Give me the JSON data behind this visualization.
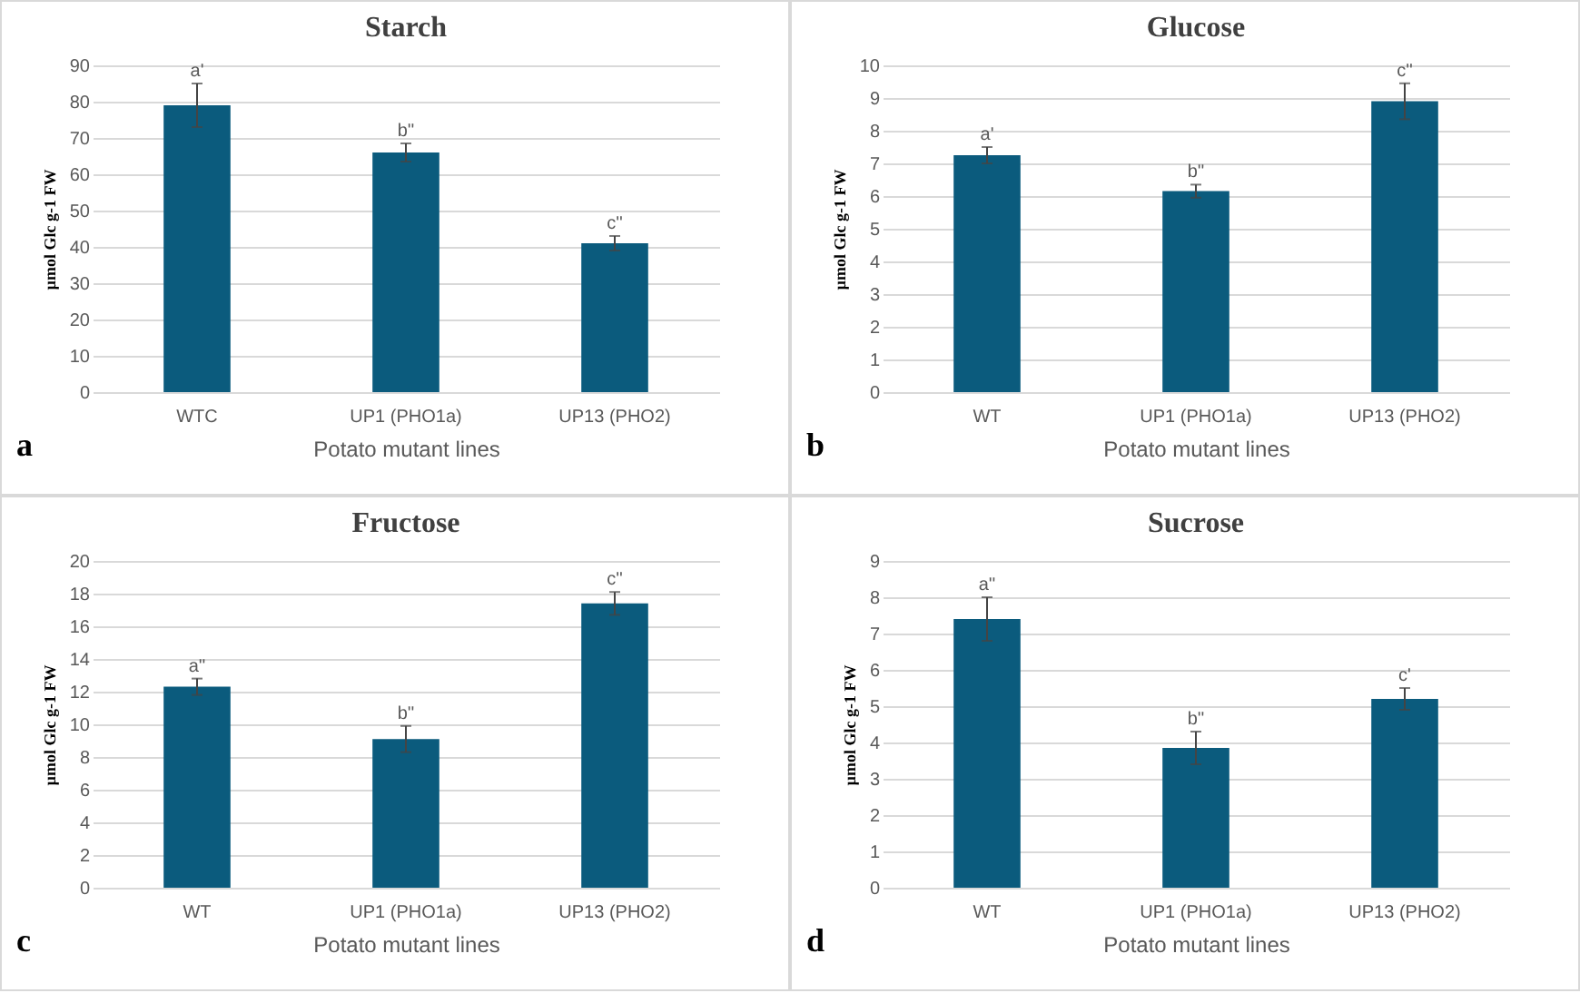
{
  "chart_data": [
    {
      "type": "bar",
      "title": "Starch",
      "xlabel": "Potato mutant lines",
      "ylabel": "µmol Glc g-1 FW",
      "categories": [
        "WTC",
        "UP1 (PHO1a)",
        "UP13 (PHO2)"
      ],
      "values": [
        79,
        66,
        41
      ],
      "errors": [
        6,
        2.5,
        2
      ],
      "color": "#0b5b7d",
      "ylim": [
        0,
        90
      ],
      "yticks": [
        0,
        10,
        20,
        30,
        40,
        50,
        60,
        70,
        80,
        90
      ],
      "grid": "y",
      "annotations": [
        {
          "text": "a'",
          "x": "WTC",
          "y": 85
        },
        {
          "text": "b''",
          "x": "UP1 (PHO1a)",
          "y": 68.5
        },
        {
          "text": "c''",
          "x": "UP13 (PHO2)",
          "y": 43
        },
        "a"
      ]
    },
    {
      "type": "bar",
      "title": "Glucose",
      "xlabel": "Potato mutant lines",
      "ylabel": "µmol Glc g-1 FW",
      "categories": [
        "WT",
        "UP1 (PHO1a)",
        "UP13 (PHO2)"
      ],
      "values": [
        7.25,
        6.15,
        8.9
      ],
      "errors": [
        0.25,
        0.2,
        0.55
      ],
      "color": "#0b5b7d",
      "ylim": [
        0,
        10
      ],
      "yticks": [
        0,
        1,
        2,
        3,
        4,
        5,
        6,
        7,
        8,
        9,
        10
      ],
      "grid": "y",
      "annotations": [
        {
          "text": "a'",
          "x": "WT",
          "y": 7.5
        },
        {
          "text": "b''",
          "x": "UP1 (PHO1a)",
          "y": 6.35
        },
        {
          "text": "c''",
          "x": "UP13 (PHO2)",
          "y": 9.45
        },
        "b"
      ]
    },
    {
      "type": "bar",
      "title": "Fructose",
      "xlabel": "Potato mutant lines",
      "ylabel": "µmol Glc g-1 FW",
      "categories": [
        "WT",
        "UP1 (PHO1a)",
        "UP13 (PHO2)"
      ],
      "values": [
        12.3,
        9.1,
        17.4
      ],
      "errors": [
        0.5,
        0.8,
        0.7
      ],
      "color": "#0b5b7d",
      "ylim": [
        0,
        20
      ],
      "yticks": [
        0,
        2,
        4,
        6,
        8,
        10,
        12,
        14,
        16,
        18,
        20
      ],
      "grid": "y",
      "annotations": [
        {
          "text": "a''",
          "x": "WT",
          "y": 12.8
        },
        {
          "text": "b''",
          "x": "UP1 (PHO1a)",
          "y": 9.9
        },
        {
          "text": "c''",
          "x": "UP13 (PHO2)",
          "y": 18.1
        },
        "c"
      ]
    },
    {
      "type": "bar",
      "title": "Sucrose",
      "xlabel": "Potato mutant lines",
      "ylabel": "µmol Glc g-1 FW",
      "categories": [
        "WT",
        "UP1 (PHO1a)",
        "UP13 (PHO2)"
      ],
      "values": [
        7.4,
        3.85,
        5.2
      ],
      "errors": [
        0.6,
        0.45,
        0.3
      ],
      "color": "#0b5b7d",
      "ylim": [
        0,
        9
      ],
      "yticks": [
        0,
        1,
        2,
        3,
        4,
        5,
        6,
        7,
        8,
        9
      ],
      "grid": "y",
      "annotations": [
        {
          "text": "a''",
          "x": "WT",
          "y": 8
        },
        {
          "text": "b''",
          "x": "UP1 (PHO1a)",
          "y": 4.3
        },
        {
          "text": "c'",
          "x": "UP13 (PHO2)",
          "y": 5.5
        },
        "d"
      ]
    }
  ]
}
